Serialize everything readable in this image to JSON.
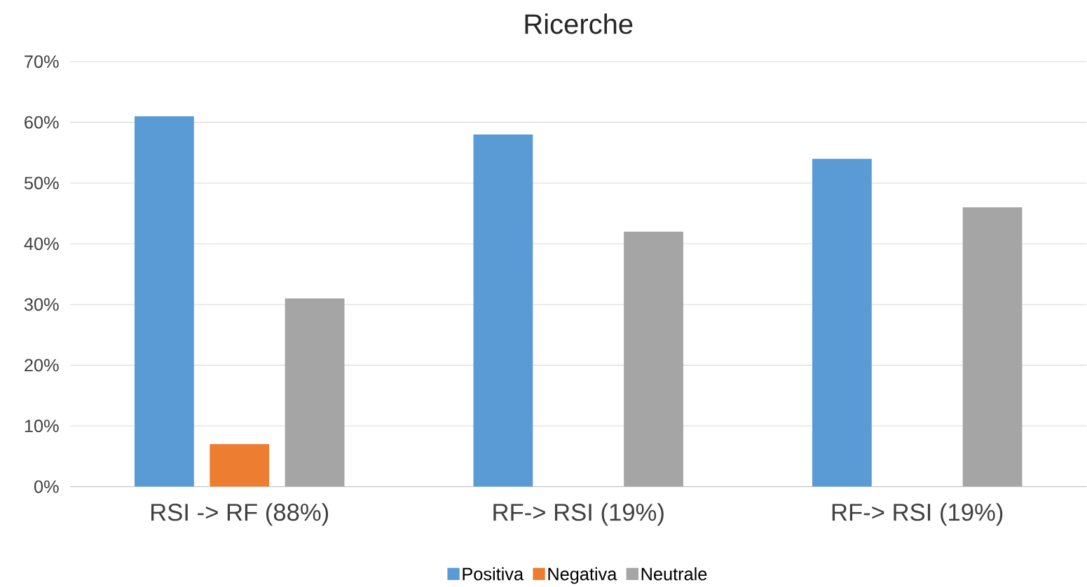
{
  "chart_data": {
    "type": "bar",
    "title": "Ricerche",
    "categories": [
      "RSI  -> RF (88%)",
      "RF->  RSI (19%)",
      "RF->  RSI (19%)"
    ],
    "series": [
      {
        "name": "Positiva",
        "color": "#5b9bd5",
        "values": [
          61,
          58,
          54
        ]
      },
      {
        "name": "Negativa",
        "color": "#ed7d31",
        "values": [
          7,
          0,
          0
        ]
      },
      {
        "name": "Neutrale",
        "color": "#a5a5a5",
        "values": [
          31,
          42,
          46
        ]
      }
    ],
    "ylim": [
      0,
      70
    ],
    "yticks": [
      {
        "value": 0,
        "label": "0%"
      },
      {
        "value": 10,
        "label": "10%"
      },
      {
        "value": 20,
        "label": "20%"
      },
      {
        "value": 30,
        "label": "30%"
      },
      {
        "value": 40,
        "label": "40%"
      },
      {
        "value": 50,
        "label": "50%"
      },
      {
        "value": 60,
        "label": "60%"
      },
      {
        "value": 70,
        "label": "70%"
      }
    ],
    "grid": "y",
    "legend": "bottom"
  }
}
